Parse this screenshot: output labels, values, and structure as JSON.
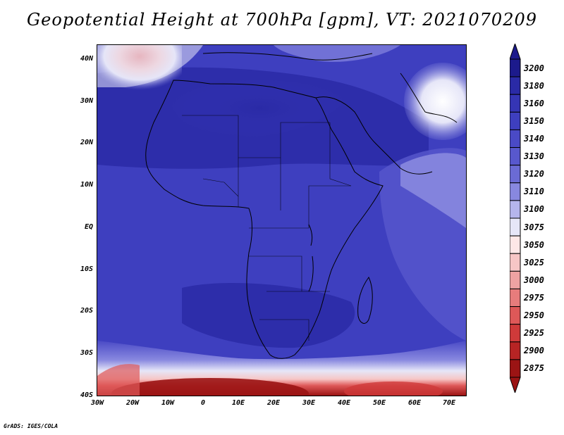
{
  "title": "Geopotential Height at 700hPa [gpm], VT: 2021070209",
  "credit": "GrADS: IGES/COLA",
  "lat_ticks": [
    "40N",
    "30N",
    "20N",
    "10N",
    "EQ",
    "10S",
    "20S",
    "30S",
    "40S"
  ],
  "lon_ticks": [
    "30W",
    "20W",
    "10W",
    "0",
    "10E",
    "20E",
    "30E",
    "40E",
    "50E",
    "60E",
    "70E"
  ],
  "colorbar": {
    "levels": [
      "3200",
      "3180",
      "3160",
      "3150",
      "3140",
      "3130",
      "3120",
      "3110",
      "3100",
      "3075",
      "3050",
      "3025",
      "3000",
      "2975",
      "2950",
      "2925",
      "2900",
      "2875"
    ],
    "colors": [
      "#1c1a8c",
      "#2a2aa6",
      "#3535b5",
      "#3e3fbf",
      "#4a4ac6",
      "#5858cd",
      "#6b6bd4",
      "#8888df",
      "#b5b5ec",
      "#e6e6f8",
      "#fde7e7",
      "#f6c6c6",
      "#efa2a2",
      "#e77c7c",
      "#de5858",
      "#cf3a3a",
      "#b72424",
      "#9b1414"
    ]
  },
  "map": {
    "region": "Africa",
    "lon_range": [
      -30,
      75
    ],
    "lat_range": [
      -40,
      45
    ],
    "variable": "Geopotential Height",
    "level": "700hPa",
    "units": "gpm",
    "valid_time": "2021070209"
  }
}
